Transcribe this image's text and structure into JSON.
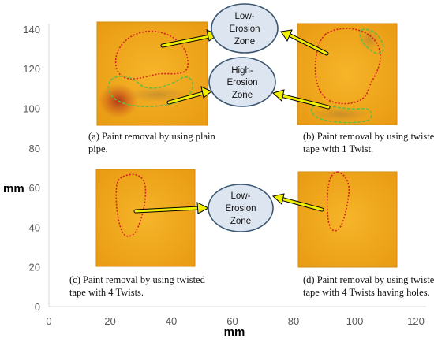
{
  "axes": {
    "x_label": "mm",
    "y_label": "mm",
    "x_ticks": [
      "0",
      "20",
      "40",
      "60",
      "80",
      "100",
      "120"
    ],
    "y_ticks": [
      "0",
      "20",
      "40",
      "60",
      "80",
      "100",
      "120",
      "140"
    ]
  },
  "panels": [
    {
      "id": "a",
      "caption_lines": [
        "(a) Paint removal by using plain",
        "pipe."
      ]
    },
    {
      "id": "b",
      "caption_lines": [
        "(b) Paint removal by using twisted",
        "tape with 1 Twist."
      ]
    },
    {
      "id": "c",
      "caption_lines": [
        "(c) Paint removal by using twisted",
        "tape with 4 Twists."
      ]
    },
    {
      "id": "d",
      "caption_lines": [
        "(d) Paint removal by using twisted",
        "tape with 4 Twists having holes."
      ]
    }
  ],
  "zones": {
    "top_low": [
      "Low-",
      "Erosion",
      "Zone"
    ],
    "top_high": [
      "High-",
      "Erosion",
      "Zone"
    ],
    "bottom_low": [
      "Low-",
      "Erosion",
      "Zone"
    ]
  },
  "colors": {
    "plate": "#f0a81c",
    "plate_edge": "#d48c0e",
    "arrow": "#f0f000",
    "low_zone_outline": "#d42020",
    "high_zone_outline": "#66bb44",
    "ellipse_fill": "#dde6f0",
    "ellipse_stroke": "#3b5570"
  }
}
